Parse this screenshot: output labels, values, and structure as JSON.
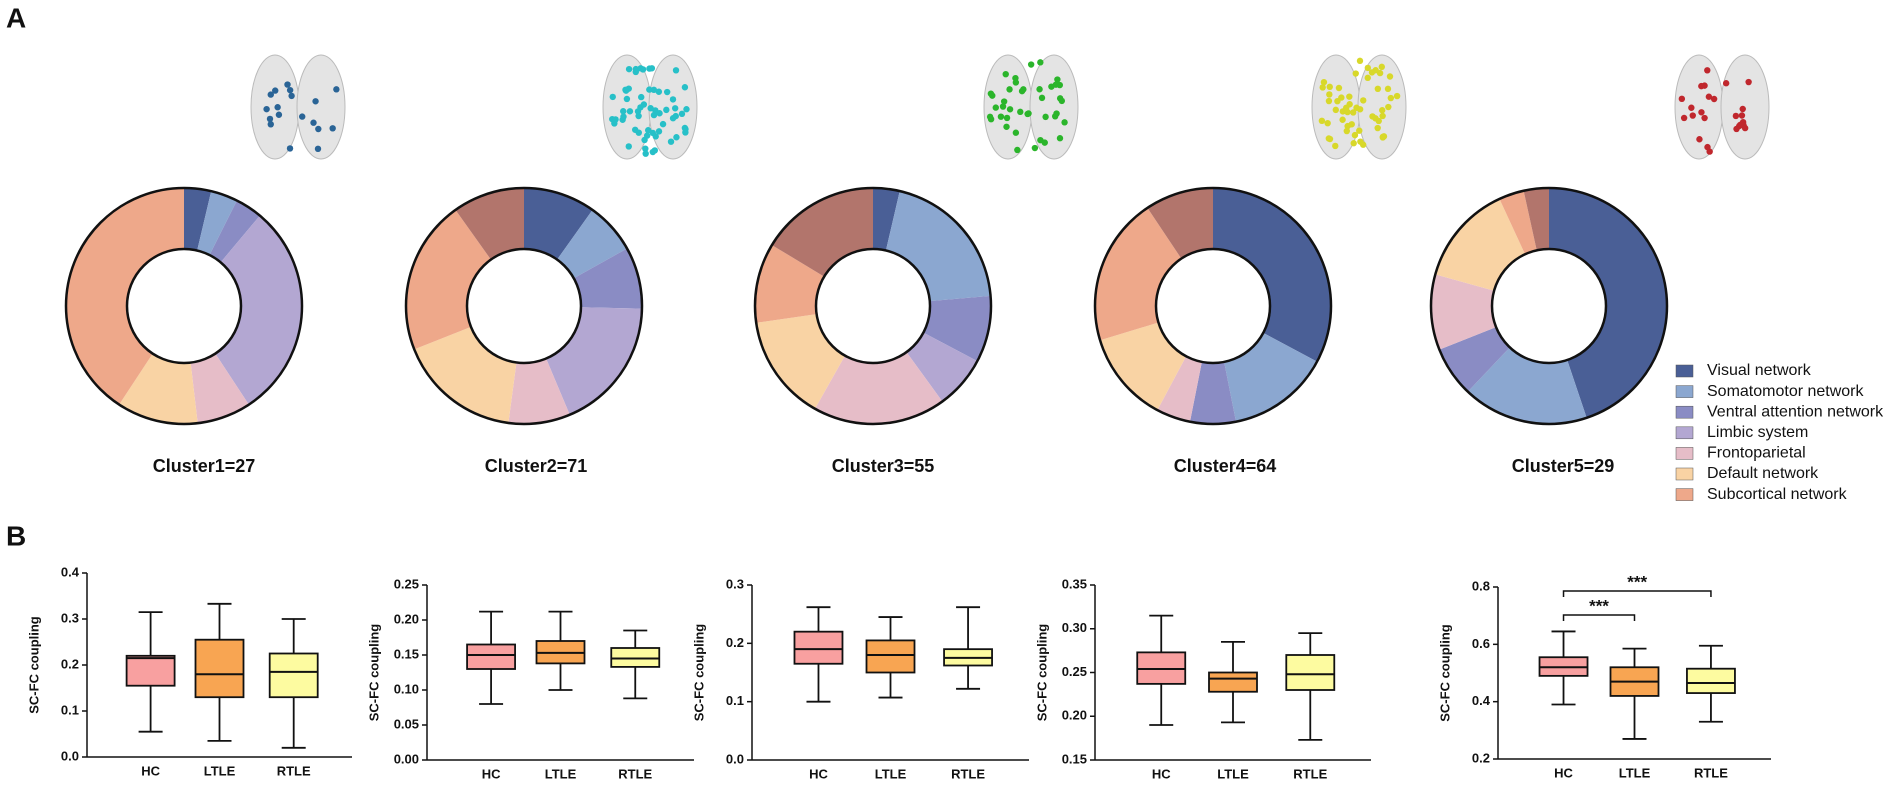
{
  "panels": [
    "A",
    "B"
  ],
  "legend": {
    "names": [
      "Visual network",
      "Somatomotor network",
      "Ventral attention network",
      "Limbic system",
      "Frontoparietal",
      "Default network",
      "Subcortical network",
      null
    ],
    "colors": [
      "#4a5f96",
      "#8ba7d0",
      "#8a8cc4",
      "#b3a7d2",
      "#e6bdc8",
      "#f9d3a4",
      "#eea88a",
      "#b2756c"
    ]
  },
  "chart_data": [
    {
      "type": "donut",
      "title": "Cluster1=27",
      "values": [
        1,
        1,
        1,
        8,
        2,
        3,
        11,
        0
      ]
    },
    {
      "type": "donut",
      "title": "Cluster2=71",
      "values": [
        7,
        5,
        6,
        13,
        6,
        12,
        15,
        7
      ]
    },
    {
      "type": "donut",
      "title": "Cluster3=55",
      "values": [
        2,
        11,
        5,
        4,
        10,
        8,
        6,
        9
      ]
    },
    {
      "type": "donut",
      "title": "Cluster4=64",
      "values": [
        21,
        9,
        4,
        0,
        3,
        8,
        13,
        6
      ]
    },
    {
      "type": "donut",
      "title": "Cluster5=29",
      "values": [
        13,
        5,
        2,
        0,
        3,
        4,
        1,
        1
      ]
    },
    {
      "type": "box",
      "ylabel": "SC-FC coupling",
      "categories": [
        "HC",
        "LTLE",
        "RTLE"
      ],
      "colors": [
        "#f8a0a0",
        "#f8a552",
        "#fdfba0"
      ],
      "min": [
        0.055,
        0.035,
        0.02
      ],
      "q1": [
        0.155,
        0.13,
        0.13
      ],
      "median": [
        0.215,
        0.18,
        0.185
      ],
      "q3": [
        0.22,
        0.255,
        0.225
      ],
      "max": [
        0.315,
        0.333,
        0.3
      ],
      "ylim": [
        0,
        0.4
      ],
      "yticks": [
        {
          "value": 0,
          "label": "0.0"
        },
        0.1,
        0.2,
        0.3,
        0.4
      ]
    },
    {
      "type": "box",
      "ylabel": "SC-FC coupling",
      "categories": [
        "HC",
        "LTLE",
        "RTLE"
      ],
      "colors": [
        "#f8a0a0",
        "#f8a552",
        "#fdfba0"
      ],
      "min": [
        0.08,
        0.1,
        0.088
      ],
      "q1": [
        0.13,
        0.138,
        0.133
      ],
      "median": [
        0.15,
        0.153,
        0.145
      ],
      "q3": [
        0.165,
        0.17,
        0.16
      ],
      "max": [
        0.212,
        0.212,
        0.185
      ],
      "ylim": [
        0,
        0.25
      ],
      "yticks": [
        {
          "value": 0,
          "label": "0.00"
        },
        0.05,
        {
          "value": 0.1,
          "label": "0.10"
        },
        0.15,
        {
          "value": 0.2,
          "label": "0.20"
        },
        0.25
      ]
    },
    {
      "type": "box",
      "ylabel": "SC-FC coupling",
      "categories": [
        "HC",
        "LTLE",
        "RTLE"
      ],
      "colors": [
        "#f8a0a0",
        "#f8a552",
        "#fdfba0"
      ],
      "min": [
        0.1,
        0.107,
        0.122
      ],
      "q1": [
        0.165,
        0.15,
        0.162
      ],
      "median": [
        0.19,
        0.18,
        0.175
      ],
      "q3": [
        0.22,
        0.205,
        0.19
      ],
      "max": [
        0.262,
        0.245,
        0.262
      ],
      "ylim": [
        0,
        0.3
      ],
      "yticks": [
        {
          "value": 0,
          "label": "0.0"
        },
        0.1,
        0.2,
        0.3
      ]
    },
    {
      "type": "box",
      "ylabel": "SC-FC coupling",
      "categories": [
        "HC",
        "LTLE",
        "RTLE"
      ],
      "colors": [
        "#f8a0a0",
        "#f8a552",
        "#fdfba0"
      ],
      "min": [
        0.19,
        0.193,
        0.173
      ],
      "q1": [
        0.237,
        0.228,
        0.23
      ],
      "median": [
        0.254,
        0.243,
        0.248
      ],
      "q3": [
        0.273,
        0.25,
        0.27
      ],
      "max": [
        0.315,
        0.285,
        0.295
      ],
      "ylim": [
        0.15,
        0.35
      ],
      "yticks": [
        0.15,
        {
          "value": 0.2,
          "label": "0.20"
        },
        0.25,
        {
          "value": 0.3,
          "label": "0.30"
        },
        0.35
      ]
    },
    {
      "type": "box",
      "ylabel": "SC-FC coupling",
      "categories": [
        "HC",
        "LTLE",
        "RTLE"
      ],
      "colors": [
        "#f8a0a0",
        "#f8a552",
        "#fdfba0"
      ],
      "min": [
        0.39,
        0.27,
        0.33
      ],
      "q1": [
        0.49,
        0.42,
        0.43
      ],
      "median": [
        0.52,
        0.47,
        0.465
      ],
      "q3": [
        0.555,
        0.52,
        0.515
      ],
      "max": [
        0.645,
        0.585,
        0.595
      ],
      "ylim": [
        0.2,
        0.8
      ],
      "yticks": [
        0.2,
        0.4,
        0.6,
        0.8
      ],
      "annotations": [
        {
          "label": "***",
          "pair": [
            "HC",
            "LTLE"
          ]
        },
        {
          "label": "***",
          "pair": [
            "HC",
            "RTLE"
          ]
        }
      ]
    }
  ]
}
